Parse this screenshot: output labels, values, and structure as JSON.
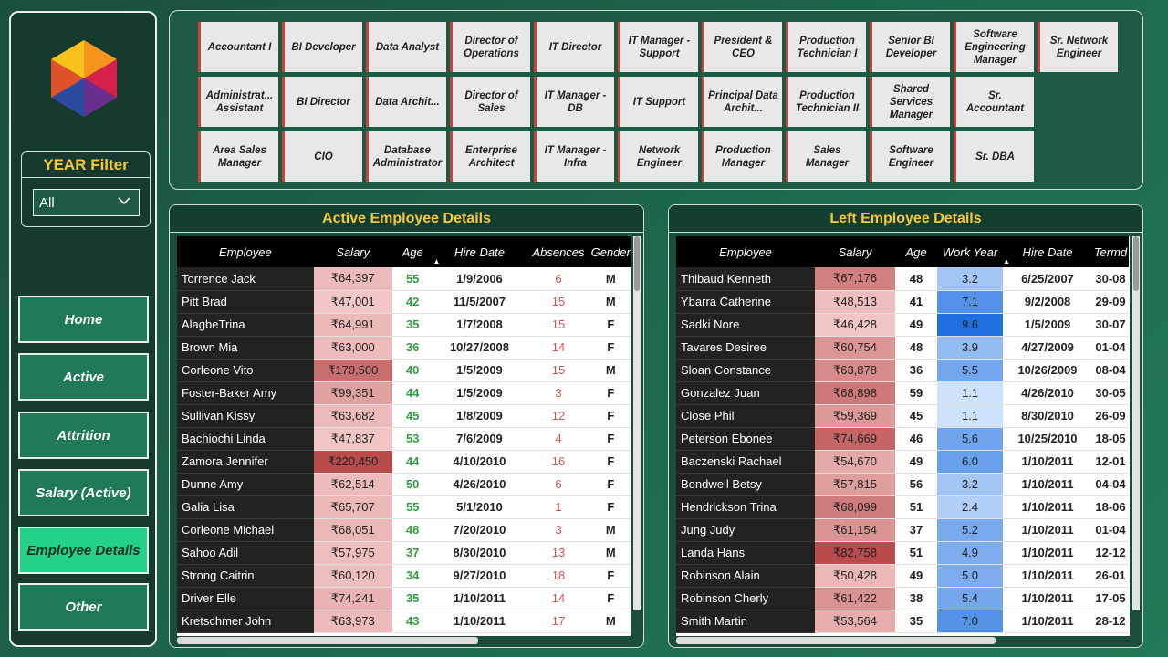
{
  "sidebar": {
    "year_filter": {
      "title": "YEAR Filter",
      "value": "All"
    },
    "nav": [
      {
        "label": "Home",
        "active": false
      },
      {
        "label": "Active",
        "active": false
      },
      {
        "label": "Attrition",
        "active": false
      },
      {
        "label": "Salary (Active)",
        "active": false
      },
      {
        "label": "Employee Details",
        "active": true
      },
      {
        "label": "Other",
        "active": false
      }
    ]
  },
  "job_filters": [
    [
      "Accountant I",
      "BI Developer",
      "Data Analyst",
      "Director of Operations",
      "IT Director",
      "IT Manager - Support",
      "President & CEO",
      "Production Technician I",
      "Senior BI Developer",
      "Software Engineering Manager",
      "Sr. Network Engineer"
    ],
    [
      "Administrat... Assistant",
      "BI Director",
      "Data Archit...",
      "Director of Sales",
      "IT Manager - DB",
      "IT Support",
      "Principal Data Archit...",
      "Production Technician II",
      "Shared Services Manager",
      "Sr. Accountant"
    ],
    [
      "Area Sales Manager",
      "CIO",
      "Database Administrator",
      "Enterprise Architect",
      "IT Manager - Infra",
      "Network Engineer",
      "Production Manager",
      "Sales Manager",
      "Software Engineer",
      "Sr. DBA"
    ]
  ],
  "active_table": {
    "title": "Active Employee Details",
    "columns": [
      "Employee",
      "Salary",
      "Age",
      "Hire Date",
      "Absences",
      "Gender"
    ],
    "rows": [
      [
        "Torrence Jack",
        "₹64,397",
        "55",
        "1/9/2006",
        "6",
        "M"
      ],
      [
        "Pitt Brad",
        "₹47,001",
        "42",
        "11/5/2007",
        "15",
        "M"
      ],
      [
        "AlagbeTrina",
        "₹64,991",
        "35",
        "1/7/2008",
        "15",
        "F"
      ],
      [
        "Brown Mia",
        "₹63,000",
        "36",
        "10/27/2008",
        "14",
        "F"
      ],
      [
        "Corleone Vito",
        "₹170,500",
        "40",
        "1/5/2009",
        "15",
        "M"
      ],
      [
        "Foster-Baker Amy",
        "₹99,351",
        "44",
        "1/5/2009",
        "3",
        "F"
      ],
      [
        "Sullivan Kissy",
        "₹63,682",
        "45",
        "1/8/2009",
        "12",
        "F"
      ],
      [
        "Bachiochi Linda",
        "₹47,837",
        "53",
        "7/6/2009",
        "4",
        "F"
      ],
      [
        "Zamora Jennifer",
        "₹220,450",
        "44",
        "4/10/2010",
        "16",
        "F"
      ],
      [
        "Dunne Amy",
        "₹62,514",
        "50",
        "4/26/2010",
        "6",
        "F"
      ],
      [
        "Galia Lisa",
        "₹65,707",
        "55",
        "5/1/2010",
        "1",
        "F"
      ],
      [
        "Corleone Michael",
        "₹68,051",
        "48",
        "7/20/2010",
        "3",
        "M"
      ],
      [
        "Sahoo Adil",
        "₹57,975",
        "37",
        "8/30/2010",
        "13",
        "M"
      ],
      [
        "Strong Caitrin",
        "₹60,120",
        "34",
        "9/27/2010",
        "18",
        "F"
      ],
      [
        "Driver Elle",
        "₹74,241",
        "35",
        "1/10/2011",
        "14",
        "F"
      ],
      [
        "Kretschmer John",
        "₹63,973",
        "43",
        "1/10/2011",
        "17",
        "M"
      ]
    ]
  },
  "left_table": {
    "title": "Left Employee Details",
    "columns": [
      "Employee",
      "Salary",
      "Age",
      "Work Year",
      "Hire Date",
      "Termd"
    ],
    "rows": [
      [
        "Thibaud Kenneth",
        "₹67,176",
        "48",
        "3.2",
        "6/25/2007",
        "30-08"
      ],
      [
        "Ybarra Catherine",
        "₹48,513",
        "41",
        "7.1",
        "9/2/2008",
        "29-09"
      ],
      [
        "Sadki Nore",
        "₹46,428",
        "49",
        "9.6",
        "1/5/2009",
        "30-07"
      ],
      [
        "Tavares Desiree",
        "₹60,754",
        "48",
        "3.9",
        "4/27/2009",
        "01-04"
      ],
      [
        "Sloan Constance",
        "₹63,878",
        "36",
        "5.5",
        "10/26/2009",
        "08-04"
      ],
      [
        "Gonzalez Juan",
        "₹68,898",
        "59",
        "1.1",
        "4/26/2010",
        "30-05"
      ],
      [
        "Close Phil",
        "₹59,369",
        "45",
        "1.1",
        "8/30/2010",
        "26-09"
      ],
      [
        "Peterson Ebonee",
        "₹74,669",
        "46",
        "5.6",
        "10/25/2010",
        "18-05"
      ],
      [
        "Baczenski Rachael",
        "₹54,670",
        "49",
        "6.0",
        "1/10/2011",
        "12-01"
      ],
      [
        "Bondwell Betsy",
        "₹57,815",
        "56",
        "3.2",
        "1/10/2011",
        "04-04"
      ],
      [
        "Hendrickson Trina",
        "₹68,099",
        "51",
        "2.4",
        "1/10/2011",
        "18-06"
      ],
      [
        "Jung Judy",
        "₹61,154",
        "37",
        "5.2",
        "1/10/2011",
        "01-04"
      ],
      [
        "Landa Hans",
        "₹82,758",
        "51",
        "4.9",
        "1/10/2011",
        "12-12"
      ],
      [
        "Robinson Alain",
        "₹50,428",
        "49",
        "5.0",
        "1/10/2011",
        "26-01"
      ],
      [
        "Robinson Cherly",
        "₹61,422",
        "38",
        "5.4",
        "1/10/2011",
        "17-05"
      ],
      [
        "Smith Martin",
        "₹53,564",
        "35",
        "7.0",
        "1/10/2011",
        "28-12"
      ]
    ]
  },
  "colors": {
    "accent_gold": "#f3c93b",
    "nav_active": "#25d089",
    "salary_light": "#f2c6c6",
    "salary_dark": "#b84b4b",
    "work_light": "#cfe3fb",
    "work_dark": "#1e6fe0"
  }
}
